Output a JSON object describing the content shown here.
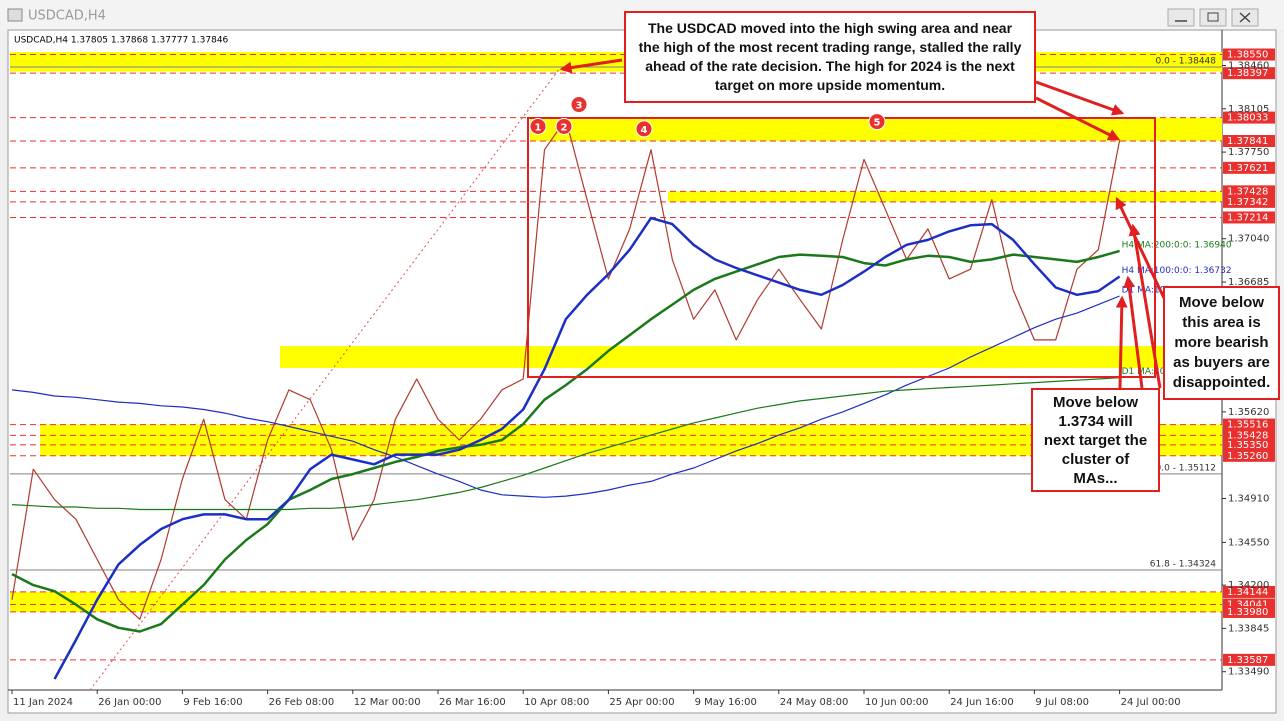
{
  "chart_data": {
    "type": "line",
    "title": "USDCAD,H4",
    "subtitle": "USDCAD,H4 1.37805 1.37868 1.37777 1.37846",
    "categories": [
      "11 Jan 2024",
      null,
      null,
      null,
      "26 Jan 00:00",
      null,
      null,
      null,
      "9 Feb 16:00",
      null,
      null,
      null,
      "26 Feb 08:00",
      null,
      null,
      null,
      "12 Mar 00:00",
      null,
      null,
      null,
      "26 Mar 16:00",
      null,
      null,
      null,
      "10 Apr 08:00",
      null,
      null,
      null,
      "25 Apr 00:00",
      null,
      null,
      null,
      "9 May 16:00",
      null,
      null,
      null,
      "24 May 08:00",
      null,
      null,
      null,
      "10 Jun 00:00",
      null,
      null,
      null,
      "24 Jun 16:00",
      null,
      null,
      null,
      "9 Jul 08:00",
      null,
      null,
      null,
      "24 Jul 00:00"
    ],
    "series": [
      {
        "color": "#b03a2e",
        "line_width": 1.2,
        "values": [
          1.3408,
          1.3515,
          1.349,
          1.3474,
          1.3441,
          1.3408,
          1.3392,
          1.3441,
          1.3507,
          1.3556,
          1.349,
          1.3474,
          1.3539,
          1.358,
          1.3572,
          1.3531,
          1.3457,
          1.349,
          1.3556,
          1.3589,
          1.3556,
          1.3539,
          1.3556,
          1.358,
          1.3589,
          1.3777,
          1.3802,
          1.3736,
          1.3671,
          1.3712,
          1.3777,
          1.3687,
          1.3638,
          1.3662,
          1.3621,
          1.3654,
          1.3679,
          1.3654,
          1.363,
          1.3703,
          1.3769,
          1.3728,
          1.3687,
          1.3712,
          1.3671,
          1.3679,
          1.3736,
          1.3662,
          1.3621,
          1.3621,
          1.3679,
          1.3695,
          1.37846
        ]
      },
      {
        "name": "H4 MA:200:0:0: 1.36940",
        "color": "#1a7a1a",
        "line_width": 2.5,
        "values": [
          1.3429,
          1.342,
          1.3415,
          1.3404,
          1.3392,
          1.3385,
          1.3382,
          1.3388,
          1.3404,
          1.342,
          1.3441,
          1.3457,
          1.347,
          1.349,
          1.3498,
          1.3507,
          1.3511,
          1.3516,
          1.3521,
          1.3525,
          1.353,
          1.3533,
          1.3535,
          1.3539,
          1.3552,
          1.3572,
          1.3584,
          1.3597,
          1.3612,
          1.3625,
          1.3638,
          1.365,
          1.3662,
          1.3671,
          1.3677,
          1.3683,
          1.3689,
          1.3691,
          1.369,
          1.3689,
          1.3684,
          1.3682,
          1.3687,
          1.369,
          1.3689,
          1.3685,
          1.3687,
          1.3691,
          1.3689,
          1.3687,
          1.3685,
          1.3689,
          1.3694
        ]
      },
      {
        "name": "H4 MA:100:0:0: 1.36732",
        "color": "#1c2fc4",
        "line_width": 2.5,
        "values": [
          null,
          null,
          1.3343,
          1.3375,
          1.3408,
          1.3437,
          1.3453,
          1.3466,
          1.3474,
          1.3478,
          1.3478,
          1.3474,
          1.3474,
          1.349,
          1.3515,
          1.3527,
          1.3523,
          1.3519,
          1.3527,
          1.3527,
          1.3527,
          1.3531,
          1.3539,
          1.3548,
          1.3564,
          1.3597,
          1.3638,
          1.3658,
          1.3675,
          1.3695,
          1.3721,
          1.3716,
          1.3699,
          1.3687,
          1.368,
          1.3674,
          1.3668,
          1.3662,
          1.3658,
          1.3666,
          1.3677,
          1.3689,
          1.3699,
          1.3703,
          1.371,
          1.3715,
          1.3716,
          1.3703,
          1.3683,
          1.3664,
          1.3658,
          1.3661,
          1.3673
        ]
      },
      {
        "name": "D1 MA:100",
        "color": "#1c2fc4",
        "line_width": 1.2,
        "values": [
          1.358,
          1.3578,
          1.3575,
          1.3574,
          1.3572,
          1.357,
          1.3569,
          1.3567,
          1.3566,
          1.3564,
          1.3561,
          1.3557,
          1.3554,
          1.355,
          1.3546,
          1.3542,
          1.3538,
          1.3531,
          1.3525,
          1.3518,
          1.3511,
          1.3505,
          1.3498,
          1.3494,
          1.3493,
          1.3492,
          1.3493,
          1.3495,
          1.3498,
          1.3502,
          1.3505,
          1.3511,
          1.3516,
          1.3523,
          1.353,
          1.3536,
          1.3543,
          1.3549,
          1.3556,
          1.3562,
          1.3569,
          1.3576,
          1.3584,
          1.3591,
          1.3598,
          1.3607,
          1.3615,
          1.3623,
          1.3631,
          1.3638,
          1.3643,
          1.365,
          1.3657
        ]
      },
      {
        "name": "D1 MA:200",
        "color": "#1a7a1a",
        "line_width": 1.2,
        "values": [
          1.3486,
          1.3485,
          1.3484,
          1.3484,
          1.3483,
          1.3483,
          1.3482,
          1.3482,
          1.3482,
          1.3482,
          1.3482,
          1.3482,
          1.3482,
          1.3482,
          1.3483,
          1.3483,
          1.3484,
          1.3486,
          1.3488,
          1.349,
          1.3493,
          1.3496,
          1.35,
          1.3505,
          1.351,
          1.3516,
          1.3522,
          1.3528,
          1.3533,
          1.3538,
          1.3543,
          1.3548,
          1.3553,
          1.3557,
          1.3561,
          1.3565,
          1.3568,
          1.3571,
          1.3573,
          1.3575,
          1.3577,
          1.3579,
          1.358,
          1.3581,
          1.3582,
          1.3583,
          1.3584,
          1.3585,
          1.3586,
          1.3587,
          1.3588,
          1.3589,
          1.359
        ]
      }
    ],
    "ylim": [
      1.3334,
      1.3871
    ],
    "yticks": [
      {
        "value": 1.3846,
        "label": "1.38460"
      },
      1.38105,
      {
        "value": 1.3775,
        "label": "1.37750"
      },
      {
        "value": 1.3704,
        "label": "1.37040"
      },
      1.36685,
      {
        "value": 1.3562,
        "label": "1.35620"
      },
      {
        "value": 1.3491,
        "label": "1.34910"
      },
      {
        "value": 1.3455,
        "label": "1.34550"
      },
      {
        "value": 1.342,
        "label": "1.34200"
      },
      1.33845,
      {
        "value": 1.3349,
        "label": "1.33490"
      }
    ],
    "levels": [
      {
        "value": 1.3855,
        "label": "1.38550"
      },
      1.38397,
      1.38033,
      1.37841,
      1.37621,
      1.37428,
      1.37342,
      1.37214,
      1.35516,
      1.35428,
      {
        "value": 1.3535,
        "label": "1.35350"
      },
      {
        "value": 1.3526,
        "label": "1.35260"
      },
      1.34144,
      1.34041,
      {
        "value": 1.3398,
        "label": "1.33980"
      },
      1.33587
    ],
    "level_color": "#e8312f",
    "zones": [
      [
        1.3841,
        1.3857
      ],
      [
        1.37841,
        1.38033
      ],
      [
        1.37342,
        1.37428
      ],
      [
        1.3598,
        1.3616
      ],
      [
        1.3526,
        1.35516
      ],
      [
        1.3398,
        1.34144
      ]
    ],
    "zone_color": "#ffff00",
    "fib_levels": [
      {
        "value": 1.38448,
        "label": "0.0 - 1.38448"
      },
      {
        "value": 1.35112,
        "label": "50.0 - 1.35112"
      },
      {
        "value": 1.34324,
        "label": "61.8 - 1.34324"
      }
    ],
    "swing_points": [
      {
        "label": "1",
        "value": 1.3796
      },
      {
        "label": "2",
        "value": 1.3796
      },
      {
        "label": "3",
        "value": 1.3814
      },
      {
        "label": "4",
        "value": 1.3794
      },
      {
        "label": "5",
        "value": 1.38
      }
    ],
    "annotations": [
      "The USDCAD moved into the high swing area and near the high of the most recent trading range, stalled the rally ahead of the rate decision. The high for 2024 is the next target on more upside momentum.",
      "Move below this area is more bearish as buyers are disappointed.",
      "Move below 1.3734 will next target the cluster of MAs..."
    ]
  }
}
